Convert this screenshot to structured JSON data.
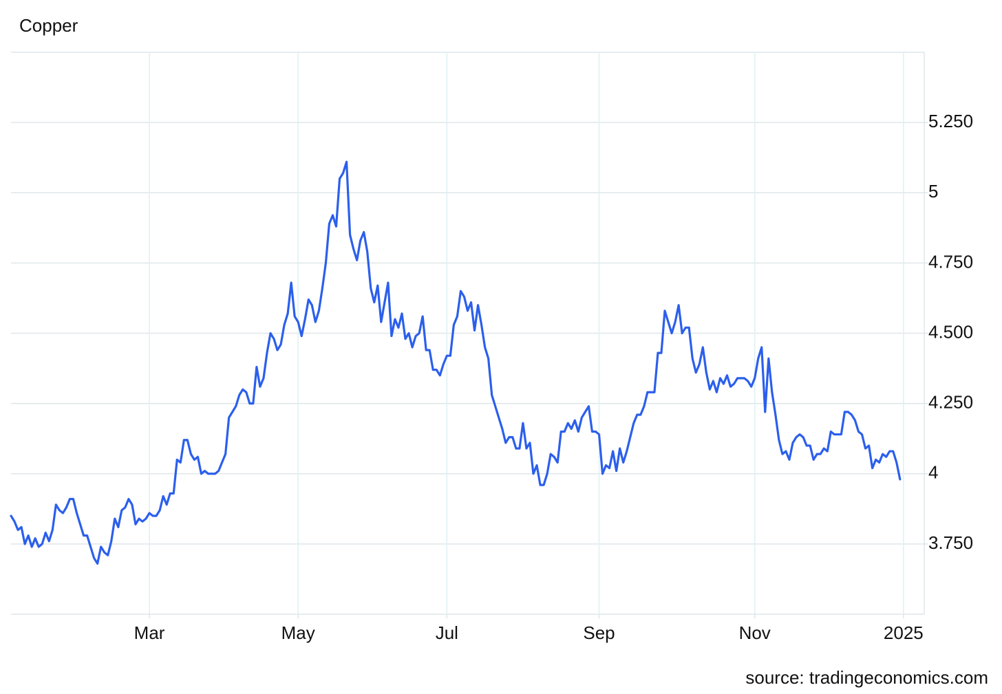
{
  "chart_data": {
    "type": "line",
    "title": "Copper",
    "source": "source: tradingeconomics.com",
    "color": "#2b5fec",
    "grid": true,
    "xlim": [
      0,
      264
    ],
    "xticks": [
      {
        "value": 40,
        "label": "Mar"
      },
      {
        "value": 83,
        "label": "May"
      },
      {
        "value": 126,
        "label": "Jul"
      },
      {
        "value": 170,
        "label": "Sep"
      },
      {
        "value": 215,
        "label": "Nov"
      },
      {
        "value": 258,
        "label": "2025"
      }
    ],
    "ylim": [
      3.5,
      5.5
    ],
    "yticks": [
      {
        "value": 3.75,
        "label": "3.750"
      },
      4,
      {
        "value": 4.25,
        "label": "4.250"
      },
      {
        "value": 4.5,
        "label": "4.500"
      },
      {
        "value": 4.75,
        "label": "4.750"
      },
      5,
      {
        "value": 5.25,
        "label": "5.250"
      }
    ],
    "values": [
      3.85,
      3.83,
      3.8,
      3.81,
      3.75,
      3.78,
      3.74,
      3.77,
      3.74,
      3.75,
      3.79,
      3.76,
      3.8,
      3.89,
      3.87,
      3.86,
      3.88,
      3.91,
      3.91,
      3.86,
      3.82,
      3.78,
      3.78,
      3.74,
      3.7,
      3.68,
      3.74,
      3.72,
      3.71,
      3.76,
      3.84,
      3.81,
      3.87,
      3.88,
      3.91,
      3.89,
      3.82,
      3.84,
      3.83,
      3.84,
      3.86,
      3.85,
      3.85,
      3.87,
      3.92,
      3.89,
      3.93,
      3.93,
      4.05,
      4.04,
      4.12,
      4.12,
      4.07,
      4.05,
      4.06,
      4.0,
      4.01,
      4.0,
      4.0,
      4.0,
      4.01,
      4.04,
      4.07,
      4.2,
      4.22,
      4.24,
      4.28,
      4.3,
      4.29,
      4.25,
      4.25,
      4.38,
      4.31,
      4.34,
      4.43,
      4.5,
      4.48,
      4.44,
      4.46,
      4.53,
      4.57,
      4.68,
      4.56,
      4.54,
      4.49,
      4.55,
      4.62,
      4.6,
      4.54,
      4.58,
      4.66,
      4.75,
      4.89,
      4.92,
      4.88,
      5.05,
      5.07,
      5.11,
      4.85,
      4.8,
      4.76,
      4.83,
      4.86,
      4.79,
      4.66,
      4.61,
      4.67,
      4.54,
      4.61,
      4.68,
      4.49,
      4.55,
      4.52,
      4.57,
      4.48,
      4.5,
      4.45,
      4.49,
      4.5,
      4.56,
      4.44,
      4.44,
      4.37,
      4.37,
      4.35,
      4.39,
      4.42,
      4.42,
      4.53,
      4.56,
      4.65,
      4.63,
      4.58,
      4.61,
      4.51,
      4.6,
      4.53,
      4.45,
      4.41,
      4.28,
      4.24,
      4.2,
      4.16,
      4.11,
      4.13,
      4.13,
      4.09,
      4.09,
      4.18,
      4.09,
      4.11,
      4.0,
      4.03,
      3.96,
      3.96,
      4.0,
      4.07,
      4.06,
      4.04,
      4.15,
      4.15,
      4.18,
      4.16,
      4.19,
      4.15,
      4.2,
      4.22,
      4.24,
      4.15,
      4.15,
      4.14,
      4.0,
      4.03,
      4.02,
      4.08,
      4.01,
      4.09,
      4.04,
      4.08,
      4.13,
      4.18,
      4.21,
      4.21,
      4.24,
      4.29,
      4.29,
      4.29,
      4.43,
      4.43,
      4.58,
      4.54,
      4.5,
      4.54,
      4.6,
      4.5,
      4.52,
      4.52,
      4.41,
      4.36,
      4.39,
      4.45,
      4.36,
      4.3,
      4.33,
      4.29,
      4.34,
      4.32,
      4.35,
      4.31,
      4.32,
      4.34,
      4.34,
      4.34,
      4.33,
      4.31,
      4.34,
      4.41,
      4.45,
      4.22,
      4.41,
      4.29,
      4.21,
      4.12,
      4.07,
      4.08,
      4.05,
      4.11,
      4.13,
      4.14,
      4.13,
      4.1,
      4.1,
      4.05,
      4.07,
      4.07,
      4.09,
      4.08,
      4.15,
      4.14,
      4.14,
      4.14,
      4.22,
      4.22,
      4.21,
      4.19,
      4.15,
      4.14,
      4.09,
      4.1,
      4.02,
      4.05,
      4.04,
      4.07,
      4.06,
      4.08,
      4.08,
      4.04,
      3.98
    ]
  }
}
